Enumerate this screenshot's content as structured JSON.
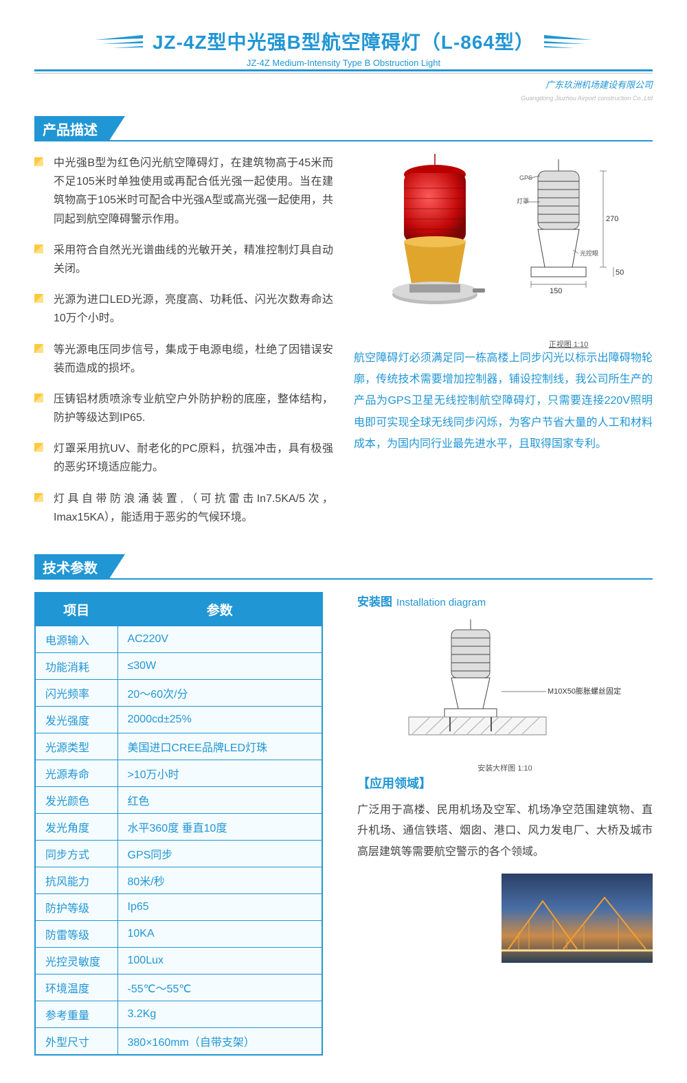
{
  "header": {
    "title_cn": "JZ-4Z型中光强B型航空障碍灯（L-864型）",
    "title_en": "JZ-4Z Medium-Intensity Type B Obstruction Light",
    "company_cn": "广东玖洲机场建设有限公司",
    "company_en": "Guangdong Jiuzhou Airport construction Co.,Ltd",
    "wing_color": "#2196d4"
  },
  "sections": {
    "desc": "产品描述",
    "spec": "技术参数"
  },
  "bullets": [
    "中光强B型为红色闪光航空障碍灯，在建筑物高于45米而不足105米时单独使用或再配合低光强一起使用。当在建筑物高于105米时可配合中光强A型或高光强一起使用，共同起到航空障碍警示作用。",
    "采用符合自然光光谱曲线的光敏开关，精准控制灯具自动关闭。",
    "光源为进口LED光源，亮度高、功耗低、闪光次数寿命达10万个小时。",
    "等光源电压同步信号，集成于电源电缆，杜绝了因错误安装而造成的损坏。",
    "压铸铝材质喷涂专业航空户外防护粉的底座，整体结构，防护等级达到IP65.",
    "灯罩采用抗UV、耐老化的PC原料，抗强冲击，具有极强的恶劣环境适应能力。",
    "灯具自带防浪涌装置,（可抗雷击In7.5KA/5次，Imax15KA），能适用于恶劣的气候环境。"
  ],
  "product": {
    "dome_color": "#d61f1f",
    "base_color": "#e0a52c",
    "foot_color": "#9a9a9a",
    "dim_h": "270",
    "dim_b": "50",
    "dim_w": "150",
    "gps_label": "GPS",
    "lamp_label": "灯罩",
    "ctrl_label": "光控眼",
    "diag_caption": "正视图 1:10"
  },
  "blue_para": "航空障碍灯必须满足同一栋高楼上同步闪光以标示出障碍物轮廓，传统技术需要增加控制器，铺设控制线，我公司所生产的产品为GPS卫星无线控制航空障碍灯，只需要连接220V照明电即可实现全球无线同步闪烁，为客户节省大量的人工和材料成本，为国内同行业最先进水平，且取得国家专利。",
  "spec_header": {
    "k": "项目",
    "v": "参数"
  },
  "specs": [
    {
      "k": "电源输入",
      "v": "AC220V"
    },
    {
      "k": "功能消耗",
      "v": "≤30W"
    },
    {
      "k": "闪光频率",
      "v": "20～60次/分"
    },
    {
      "k": "发光强度",
      "v": "2000cd±25%"
    },
    {
      "k": "光源类型",
      "v": "美国进口CREE品牌LED灯珠"
    },
    {
      "k": "光源寿命",
      "v": ">10万小时"
    },
    {
      "k": "发光颜色",
      "v": "红色"
    },
    {
      "k": "发光角度",
      "v": "水平360度 垂直10度"
    },
    {
      "k": "同步方式",
      "v": "GPS同步"
    },
    {
      "k": "抗风能力",
      "v": "80米/秒"
    },
    {
      "k": "防护等级",
      "v": "Ip65"
    },
    {
      "k": "防雷等级",
      "v": "10KA"
    },
    {
      "k": "光控灵敏度",
      "v": "100Lux"
    },
    {
      "k": "环境温度",
      "v": "-55℃～55℃"
    },
    {
      "k": "参考重量",
      "v": "3.2Kg"
    },
    {
      "k": "外型尺寸",
      "v": "380×160mm（自带支架）"
    }
  ],
  "install": {
    "head_cn": "安装图",
    "head_en": "Installation diagram",
    "bolt_label": "M10X50膨胀螺丝固定",
    "caption": "安装大样图 1:10"
  },
  "app": {
    "head": "【应用领域】",
    "text": "广泛用于高楼、民用机场及空军、机场净空范围建筑物、直升机场、通信铁塔、烟囱、港口、风力发电厂、大桥及城市高层建筑等需要航空警示的各个领域。"
  },
  "colors": {
    "accent": "#2196d4"
  }
}
